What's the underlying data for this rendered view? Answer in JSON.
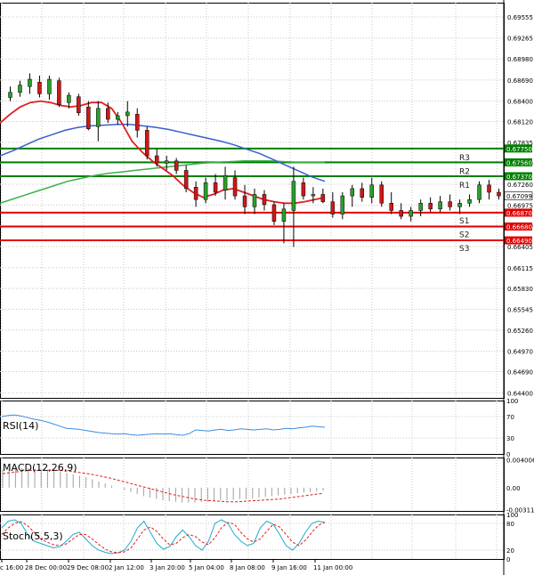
{
  "chart_data": [
    {
      "type": "candlestick",
      "panel": "price",
      "ylim": [
        0.6433,
        0.6975
      ],
      "y_ticks": [
        "0.69555",
        "0.69265",
        "0.68980",
        "0.68690",
        "0.68400",
        "0.68120",
        "0.67835",
        "0.67550",
        "0.67260",
        "0.66975",
        "0.66690",
        "0.66405",
        "0.66115",
        "0.65830",
        "0.65545",
        "0.65260",
        "0.64970",
        "0.64690",
        "0.64400"
      ],
      "current_price": {
        "label": "0.67099",
        "value": 0.67099
      },
      "levels": [
        {
          "name": "R3",
          "value": 0.6775,
          "label": "0.67750",
          "color": "#008000"
        },
        {
          "name": "R2",
          "value": 0.6756,
          "label": "0.67560",
          "color": "#008000"
        },
        {
          "name": "R1",
          "value": 0.6737,
          "label": "0.67370",
          "color": "#008000"
        },
        {
          "name": "S1",
          "value": 0.6687,
          "label": "0.66870",
          "color": "#e00000"
        },
        {
          "name": "S2",
          "value": 0.6668,
          "label": "0.66680",
          "color": "#e00000"
        },
        {
          "name": "S3",
          "value": 0.6649,
          "label": "0.66490",
          "color": "#e00000"
        }
      ],
      "candles": [
        [
          0.6845,
          0.686,
          0.684,
          0.6852
        ],
        [
          0.6852,
          0.6868,
          0.6846,
          0.6862
        ],
        [
          0.686,
          0.6878,
          0.685,
          0.687
        ],
        [
          0.6866,
          0.6875,
          0.6845,
          0.685
        ],
        [
          0.685,
          0.6875,
          0.6842,
          0.687
        ],
        [
          0.6868,
          0.6872,
          0.6832,
          0.6835
        ],
        [
          0.6838,
          0.6852,
          0.683,
          0.6848
        ],
        [
          0.6846,
          0.685,
          0.682,
          0.6824
        ],
        [
          0.6832,
          0.684,
          0.68,
          0.6802
        ],
        [
          0.6805,
          0.684,
          0.6785,
          0.683
        ],
        [
          0.683,
          0.6838,
          0.681,
          0.6815
        ],
        [
          0.6815,
          0.6825,
          0.6808,
          0.682
        ],
        [
          0.682,
          0.684,
          0.6805,
          0.6825
        ],
        [
          0.6822,
          0.683,
          0.679,
          0.68
        ],
        [
          0.68,
          0.6805,
          0.676,
          0.6765
        ],
        [
          0.6765,
          0.6775,
          0.675,
          0.6755
        ],
        [
          0.6755,
          0.6765,
          0.6745,
          0.6758
        ],
        [
          0.6758,
          0.6762,
          0.674,
          0.6745
        ],
        [
          0.6745,
          0.6752,
          0.6715,
          0.672
        ],
        [
          0.6722,
          0.673,
          0.6695,
          0.6705
        ],
        [
          0.6705,
          0.6735,
          0.67,
          0.6728
        ],
        [
          0.6728,
          0.674,
          0.671,
          0.6715
        ],
        [
          0.6718,
          0.675,
          0.6705,
          0.6738
        ],
        [
          0.6735,
          0.6745,
          0.6705,
          0.671
        ],
        [
          0.671,
          0.6725,
          0.6685,
          0.6695
        ],
        [
          0.6695,
          0.672,
          0.6685,
          0.6712
        ],
        [
          0.6712,
          0.6718,
          0.669,
          0.6698
        ],
        [
          0.6698,
          0.6702,
          0.667,
          0.6675
        ],
        [
          0.6675,
          0.67,
          0.6645,
          0.6692
        ],
        [
          0.669,
          0.675,
          0.664,
          0.673
        ],
        [
          0.6728,
          0.6735,
          0.6705,
          0.671
        ],
        [
          0.671,
          0.6722,
          0.67,
          0.6712
        ],
        [
          0.6712,
          0.672,
          0.67,
          0.6702
        ],
        [
          0.6702,
          0.6715,
          0.668,
          0.6685
        ],
        [
          0.6685,
          0.6715,
          0.6678,
          0.671
        ],
        [
          0.671,
          0.6725,
          0.6695,
          0.672
        ],
        [
          0.672,
          0.6728,
          0.6702,
          0.6708
        ],
        [
          0.6708,
          0.6735,
          0.67,
          0.6725
        ],
        [
          0.6725,
          0.673,
          0.6695,
          0.67
        ],
        [
          0.67,
          0.6715,
          0.6685,
          0.669
        ],
        [
          0.669,
          0.67,
          0.6678,
          0.6682
        ],
        [
          0.6682,
          0.6695,
          0.6675,
          0.669
        ],
        [
          0.669,
          0.6705,
          0.6682,
          0.67
        ],
        [
          0.67,
          0.6708,
          0.6688,
          0.6692
        ],
        [
          0.6692,
          0.671,
          0.6688,
          0.6702
        ],
        [
          0.6702,
          0.6712,
          0.669,
          0.6695
        ],
        [
          0.6695,
          0.6705,
          0.6685,
          0.67
        ],
        [
          0.67,
          0.6712,
          0.6695,
          0.6705
        ],
        [
          0.6705,
          0.673,
          0.67,
          0.6725
        ],
        [
          0.6725,
          0.6732,
          0.6705,
          0.6715
        ],
        [
          0.6715,
          0.672,
          0.6705,
          0.671
        ]
      ],
      "ma_fast": [
        0.681,
        0.6822,
        0.6832,
        0.6838,
        0.684,
        0.6838,
        0.6834,
        0.6832,
        0.6834,
        0.6838,
        0.6838,
        0.683,
        0.681,
        0.6785,
        0.677,
        0.6758,
        0.6748,
        0.6738,
        0.6725,
        0.6715,
        0.6708,
        0.6712,
        0.6718,
        0.672,
        0.6715,
        0.671,
        0.6705,
        0.6702,
        0.67,
        0.67,
        0.6702,
        0.6705,
        0.6708
      ],
      "ma_mid": [
        0.6765,
        0.6772,
        0.678,
        0.6788,
        0.6794,
        0.68,
        0.6804,
        0.6806,
        0.6807,
        0.6808,
        0.6808,
        0.6806,
        0.6804,
        0.6801,
        0.6797,
        0.6793,
        0.6789,
        0.6785,
        0.678,
        0.6774,
        0.6768,
        0.676,
        0.6752,
        0.6744,
        0.6736,
        0.673
      ],
      "ma_slow": [
        0.67,
        0.6706,
        0.6712,
        0.6718,
        0.6724,
        0.673,
        0.6734,
        0.6738,
        0.6741,
        0.6743,
        0.6745,
        0.6747,
        0.6749,
        0.6751,
        0.6753,
        0.6755,
        0.6756,
        0.6757,
        0.6758,
        0.6758,
        0.6758,
        0.6757,
        0.6756,
        0.6756,
        0.6756
      ],
      "x_tick_labels": [
        "c 16:00",
        "28 Dec 00:00",
        "29 Dec 08:00",
        "2 Jan 12:00",
        "3 Jan 20:00",
        "5 Jan 04:00",
        "8 Jan 08:00",
        "9 Jan 16:00",
        "11 Jan 00:00"
      ]
    },
    {
      "type": "line",
      "panel": "RSI",
      "title": "RSI(14)",
      "ylim": [
        0,
        100
      ],
      "y_ticks": [
        "100",
        "70",
        "30",
        "0"
      ],
      "values": [
        70,
        72,
        73,
        71,
        68,
        65,
        63,
        60,
        56,
        52,
        48,
        47,
        46,
        44,
        42,
        40,
        39,
        38,
        37,
        38,
        36,
        35,
        36,
        37,
        38,
        37,
        38,
        36,
        35,
        38,
        45,
        44,
        43,
        45,
        46,
        44,
        45,
        47,
        46,
        45,
        46,
        47,
        45,
        46,
        48,
        47,
        49,
        50,
        52,
        51,
        50
      ]
    },
    {
      "type": "histogram",
      "panel": "MACD",
      "title": "MACD(12,26,9)",
      "ylim": [
        -0.0033,
        0.0043
      ],
      "y_ticks": [
        "0.004006",
        "0.00",
        "-0.003115"
      ],
      "values": [
        0.0026,
        0.0027,
        0.0028,
        0.0028,
        0.0028,
        0.0027,
        0.0026,
        0.0025,
        0.0024,
        0.0023,
        0.0021,
        0.0019,
        0.0017,
        0.0015,
        0.0012,
        0.0009,
        0.0006,
        0.0003,
        0.0,
        -0.0003,
        -0.0006,
        -0.0009,
        -0.0012,
        -0.0014,
        -0.0016,
        -0.0018,
        -0.0019,
        -0.002,
        -0.0021,
        -0.0021,
        -0.0021,
        -0.002,
        -0.002,
        -0.0019,
        -0.0018,
        -0.0018,
        -0.0017,
        -0.0016,
        -0.0016,
        -0.0015,
        -0.0014,
        -0.0013,
        -0.0012,
        -0.0011,
        -0.001,
        -0.0009,
        -0.0008,
        -0.0007,
        -0.0006,
        -0.0005,
        -0.0004
      ],
      "signal": [
        0.002,
        0.0022,
        0.0024,
        0.0025,
        0.0025,
        0.0025,
        0.0024,
        0.0022,
        0.002,
        0.0017,
        0.0014,
        0.001,
        0.0006,
        0.0002,
        -0.0002,
        -0.0006,
        -0.001,
        -0.0013,
        -0.0016,
        -0.0018,
        -0.0019,
        -0.002,
        -0.002,
        -0.0019,
        -0.0018,
        -0.0017,
        -0.0016,
        -0.0014,
        -0.0012,
        -0.001,
        -0.0008
      ]
    },
    {
      "type": "line",
      "panel": "Stochastic",
      "title": "Stoch(5,5,3)",
      "ylim": [
        0,
        100
      ],
      "y_ticks": [
        "100",
        "80",
        "20",
        "0"
      ],
      "k_values": [
        70,
        85,
        88,
        80,
        55,
        40,
        35,
        30,
        25,
        28,
        40,
        55,
        60,
        45,
        30,
        20,
        15,
        12,
        14,
        20,
        40,
        70,
        85,
        60,
        35,
        22,
        28,
        50,
        65,
        50,
        30,
        20,
        40,
        80,
        88,
        80,
        55,
        40,
        30,
        35,
        70,
        85,
        78,
        55,
        30,
        20,
        35,
        60,
        80,
        85,
        82
      ],
      "d_values": [
        55,
        70,
        80,
        84,
        75,
        60,
        45,
        38,
        32,
        30,
        34,
        45,
        55,
        55,
        45,
        33,
        22,
        16,
        14,
        16,
        25,
        45,
        65,
        72,
        62,
        45,
        32,
        35,
        48,
        55,
        50,
        38,
        32,
        48,
        70,
        82,
        78,
        60,
        45,
        38,
        45,
        62,
        78,
        72,
        55,
        38,
        30,
        42,
        60,
        76,
        82
      ]
    }
  ]
}
